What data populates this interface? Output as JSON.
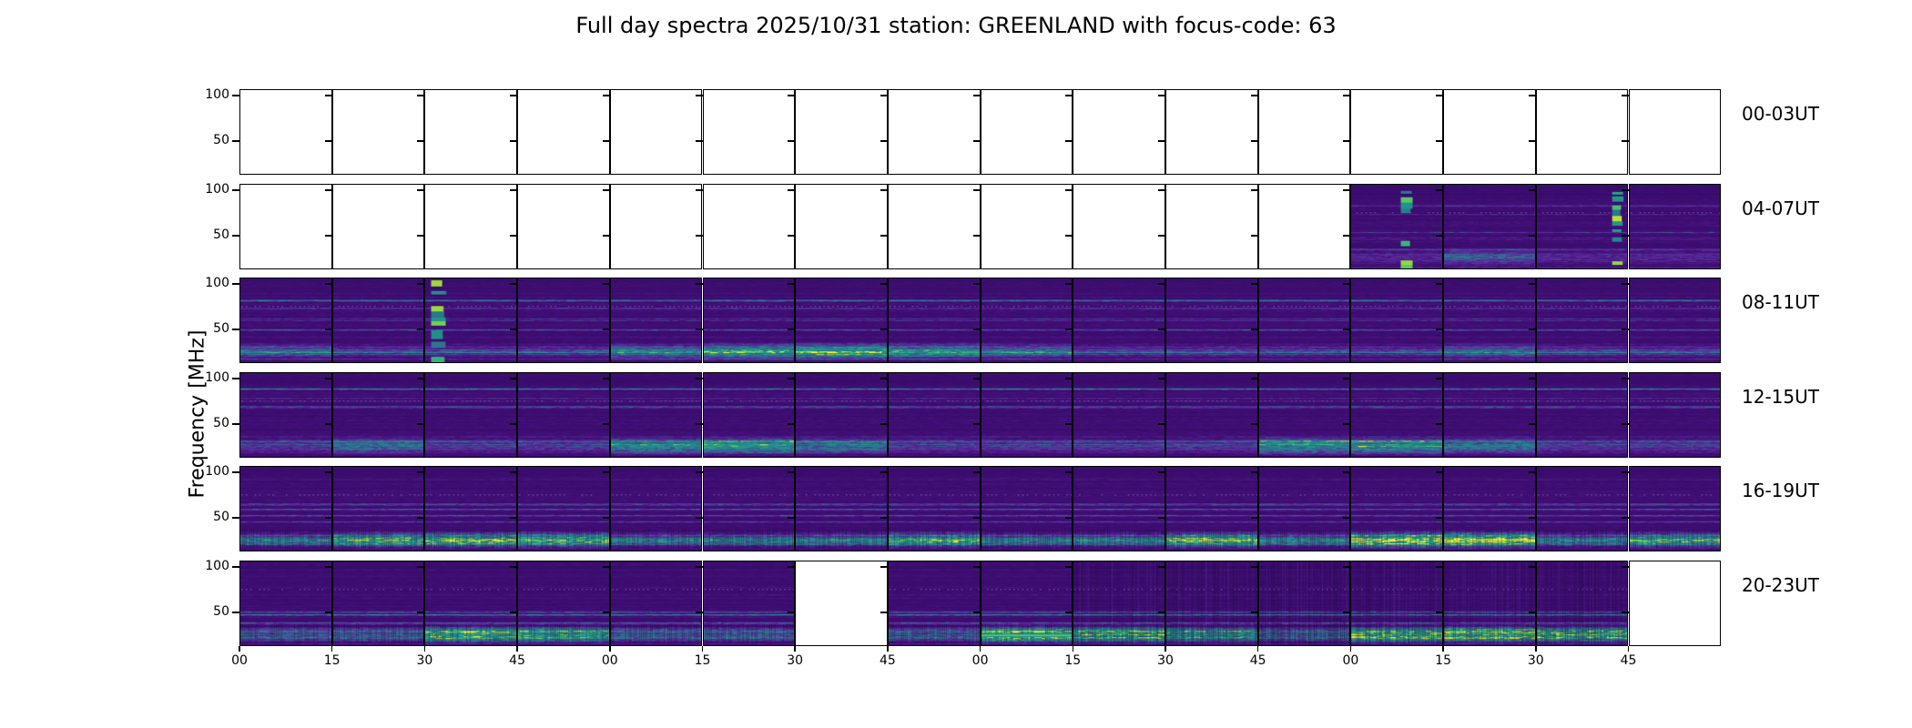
{
  "figure": {
    "title": "Full day spectra 2025/10/31 station: GREENLAND with focus-code: 63",
    "ylabel": "Frequency [MHz]",
    "background": "#ffffff"
  },
  "chart_data": {
    "type": "heatmap",
    "title": "Full day spectra 2025/10/31 station: GREENLAND with focus-code: 63",
    "date": "2025/10/31",
    "station": "GREENLAND",
    "focus_code": 63,
    "ylabel": "Frequency [MHz]",
    "y_tick_labels": [
      "100",
      "50"
    ],
    "y_ticks_mhz": [
      100,
      50
    ],
    "x_tick_labels": [
      "00",
      "15",
      "30",
      "45",
      "00",
      "15",
      "30",
      "45",
      "00",
      "15",
      "30",
      "45",
      "00",
      "15",
      "30",
      "45"
    ],
    "x_units": "minutes",
    "segments_per_row": 16,
    "colormap": "viridis",
    "colors": {
      "empty": "#ffffff",
      "base_purple": "#431078",
      "dark_purple": "#320963",
      "blue": "#31688e",
      "teal": "#21918c",
      "green": "#35b779",
      "yellow": "#d8e219",
      "frame": "#000000"
    },
    "rows": [
      {
        "label": "00-03UT",
        "time_range": "00:00-03:59 UT",
        "data_present": [
          false,
          false,
          false,
          false,
          false,
          false,
          false,
          false,
          false,
          false,
          false,
          false,
          false,
          false,
          false,
          false
        ],
        "texture": {}
      },
      {
        "label": "04-07UT",
        "time_range": "04:00-07:59 UT",
        "data_present": [
          false,
          false,
          false,
          false,
          false,
          false,
          false,
          false,
          false,
          false,
          false,
          false,
          true,
          true,
          true,
          true
        ],
        "texture": {
          "bottom": 0.28,
          "mid": 0.12,
          "hatch": false,
          "vfeatures": [
            {
              "cell": 12,
              "pos": 0.61,
              "width": 0.13
            },
            {
              "cell": 14,
              "pos": 0.9,
              "width": 0.13
            }
          ],
          "cell_bottom_boost": {
            "13": 0.25
          }
        }
      },
      {
        "label": "08-11UT",
        "time_range": "08:00-11:59 UT",
        "data_present": [
          true,
          true,
          true,
          true,
          true,
          true,
          true,
          true,
          true,
          true,
          true,
          true,
          true,
          true,
          true,
          true
        ],
        "texture": {
          "bottom": 0.4,
          "mid": 0.25,
          "hatch": false,
          "vfeatures": [
            {
              "cell": 2,
              "pos": 0.15,
              "width": 0.17
            }
          ],
          "cell_bottom_boost": {
            "0": 0.2,
            "4": 0.3,
            "5": 0.55,
            "6": 0.6,
            "7": 0.45,
            "8": 0.25,
            "13": 0.2
          }
        }
      },
      {
        "label": "12-15UT",
        "time_range": "12:00-15:59 UT",
        "data_present": [
          true,
          true,
          true,
          true,
          true,
          true,
          true,
          true,
          true,
          true,
          true,
          true,
          true,
          true,
          true,
          true
        ],
        "texture": {
          "bottom": 0.5,
          "mid": 0.32,
          "hatch": false,
          "vfeatures": [],
          "cell_bottom_boost": {
            "1": 0.25,
            "4": 0.4,
            "5": 0.55,
            "6": 0.3,
            "11": 0.5,
            "12": 0.55,
            "13": 0.3
          }
        }
      },
      {
        "label": "16-19UT",
        "time_range": "16:00-19:59 UT",
        "data_present": [
          true,
          true,
          true,
          true,
          true,
          true,
          true,
          true,
          true,
          true,
          true,
          true,
          true,
          true,
          true,
          true
        ],
        "texture": {
          "bottom": 0.85,
          "mid": 0.42,
          "hatch": true,
          "vfeatures": [],
          "cell_bottom_boost": {
            "1": 0.3,
            "2": 0.4,
            "3": 0.35,
            "7": 0.3,
            "10": 0.4,
            "12": 0.6,
            "13": 0.65,
            "15": 0.3
          }
        }
      },
      {
        "label": "20-23UT",
        "time_range": "20:00-23:59 UT",
        "data_present": [
          true,
          true,
          true,
          true,
          true,
          true,
          false,
          true,
          true,
          true,
          true,
          true,
          true,
          true,
          true,
          false
        ],
        "texture": {
          "bottom": 0.78,
          "mid": 0.35,
          "hatch": true,
          "vfeatures": [],
          "vstripe_cells": [
            9,
            10,
            11,
            12,
            13,
            14
          ],
          "strong_line_cells": [
            8
          ],
          "cell_bottom_boost": {
            "2": 0.5,
            "3": 0.45,
            "8": 0.65,
            "9": 0.5,
            "10": 0.35,
            "12": 0.6,
            "13": 0.7,
            "14": 0.5
          }
        }
      }
    ]
  }
}
